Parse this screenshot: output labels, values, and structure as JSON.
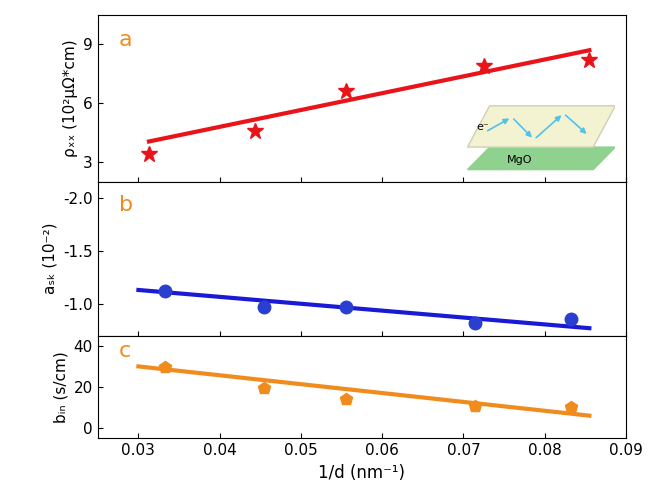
{
  "chart_data": [
    {
      "type": "scatter",
      "panel_label": "a",
      "ylabel": "ρₓₓ (10²μΩ*cm)",
      "xlim": [
        0.025,
        0.09
      ],
      "xticks": [
        0.03,
        0.04,
        0.05,
        0.06,
        0.07,
        0.08,
        0.09
      ],
      "ylim": [
        2,
        10.5
      ],
      "yticks": [
        3,
        6,
        9
      ],
      "annotations": [
        "MgO",
        "e⁻"
      ],
      "series": [
        {
          "type": "scatter",
          "marker": "star",
          "color": "#e8141a",
          "x": [
            0.0313,
            0.0444,
            0.0555,
            0.0725,
            0.0855
          ],
          "values": [
            3.4,
            4.6,
            6.6,
            7.9,
            8.2
          ]
        },
        {
          "type": "line",
          "color": "#e8141a",
          "line_style": "solid",
          "x": [
            0.0313,
            0.0855
          ],
          "values": [
            4.05,
            8.7
          ]
        }
      ]
    },
    {
      "type": "scatter",
      "panel_label": "b",
      "ylabel": "aₛₖ (10⁻²)",
      "xlim": [
        0.025,
        0.09
      ],
      "xticks": [
        0.03,
        0.04,
        0.05,
        0.06,
        0.07,
        0.08,
        0.09
      ],
      "ylim": [
        -0.7,
        -2.15
      ],
      "yticks": [
        -2.0,
        -1.5,
        -1.0
      ],
      "series": [
        {
          "type": "scatter",
          "marker": "circle",
          "color": "#2a3fd0",
          "x": [
            0.0333,
            0.0455,
            0.0555,
            0.0714,
            0.0833
          ],
          "values": [
            -1.12,
            -0.97,
            -0.97,
            -0.82,
            -0.86
          ]
        },
        {
          "type": "line",
          "color": "#1a1ad6",
          "line_style": "solid",
          "x": [
            0.03,
            0.0855
          ],
          "values": [
            -1.13,
            -0.77
          ]
        }
      ]
    },
    {
      "type": "scatter",
      "panel_label": "c",
      "ylabel": "bᵢₙ (s/cm)",
      "xlabel": "1/d (nm⁻¹)",
      "xlim": [
        0.025,
        0.09
      ],
      "xticks": [
        0.03,
        0.04,
        0.05,
        0.06,
        0.07,
        0.08,
        0.09
      ],
      "ylim": [
        -5,
        45
      ],
      "yticks": [
        0,
        20,
        40
      ],
      "series": [
        {
          "type": "scatter",
          "marker": "pentagon",
          "color": "#f08c1e",
          "x": [
            0.0333,
            0.0455,
            0.0555,
            0.0714,
            0.0833
          ],
          "values": [
            29.5,
            19.5,
            14,
            10.5,
            10
          ]
        },
        {
          "type": "line",
          "color": "#f08c1e",
          "line_style": "solid",
          "x": [
            0.03,
            0.0855
          ],
          "values": [
            30,
            6
          ]
        }
      ]
    }
  ]
}
